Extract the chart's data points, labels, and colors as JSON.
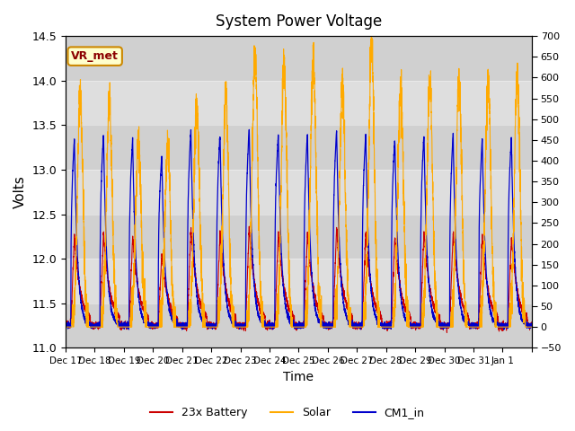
{
  "title": "System Power Voltage",
  "xlabel": "Time",
  "ylabel": "Volts",
  "ylim_left": [
    11.0,
    14.5
  ],
  "ylim_right": [
    -50,
    700
  ],
  "yticks_left": [
    11.0,
    11.5,
    12.0,
    12.5,
    13.0,
    13.5,
    14.0,
    14.5
  ],
  "yticks_right": [
    -50,
    0,
    50,
    100,
    150,
    200,
    250,
    300,
    350,
    400,
    450,
    500,
    550,
    600,
    650,
    700
  ],
  "xtick_positions": [
    0,
    1,
    2,
    3,
    4,
    5,
    6,
    7,
    8,
    9,
    10,
    11,
    12,
    13,
    14,
    15,
    16
  ],
  "xticklabels": [
    "Dec 17",
    "Dec 18",
    "Dec 19",
    "Dec 20",
    "Dec 21",
    "Dec 22",
    "Dec 23",
    "Dec 24",
    "Dec 25",
    "Dec 26",
    "Dec 27",
    "Dec 28",
    "Dec 29",
    "Dec 30",
    "Dec 31",
    "Jan 1",
    ""
  ],
  "color_battery": "#cc0000",
  "color_solar": "#ffaa00",
  "color_cm1": "#0000cc",
  "legend_labels": [
    "23x Battery",
    "Solar",
    "CM1_in"
  ],
  "vr_met_label": "VR_met",
  "background_color": "#ffffff",
  "plot_bg_color": "#e8e8e8",
  "band_positions": [
    11.0,
    11.5,
    12.0,
    12.5,
    13.0,
    13.5,
    14.0,
    14.5
  ],
  "num_days": 16
}
